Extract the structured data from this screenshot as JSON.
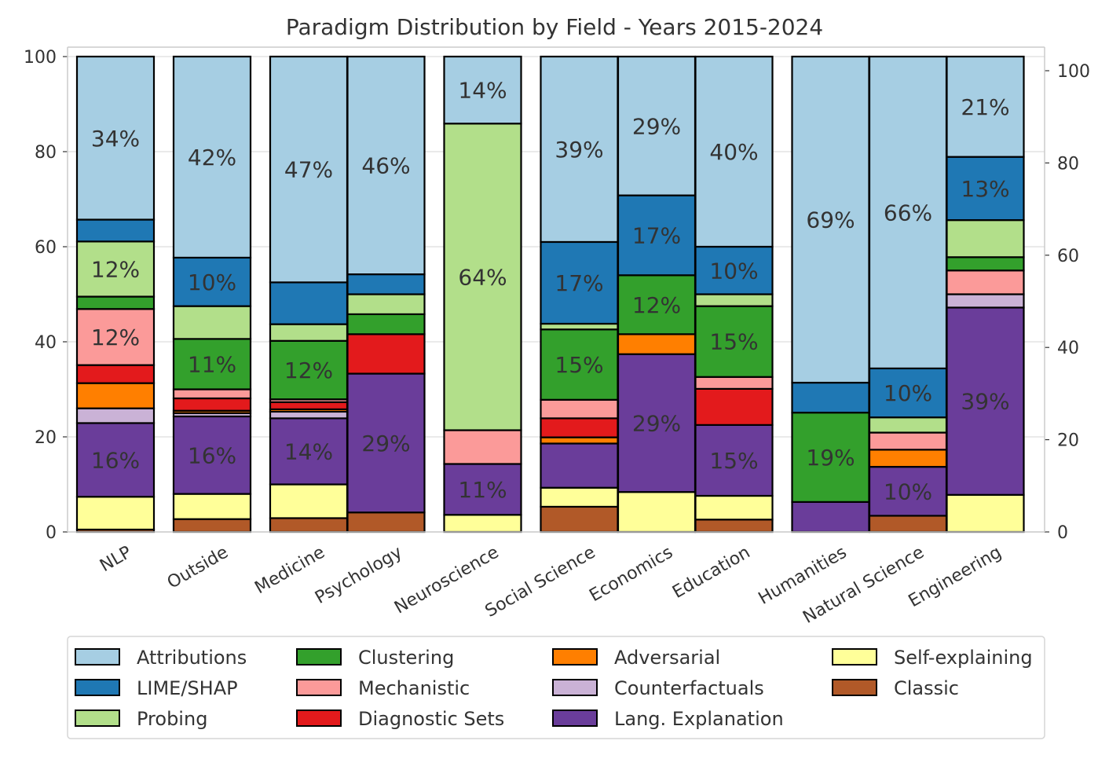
{
  "chart_data": {
    "type": "bar",
    "stacked": true,
    "title": "Paradigm Distribution by Field - Years 2015-2024",
    "xlabel": "",
    "ylabel": "",
    "ylim": [
      0,
      100
    ],
    "y_ticks": [
      0,
      20,
      40,
      60,
      80,
      100
    ],
    "y2_ticks": [
      0,
      20,
      40,
      60,
      80,
      100
    ],
    "grid": "horizontal",
    "legend_position": "bottom",
    "groups": [
      [
        "NLP"
      ],
      [
        "Outside"
      ],
      [
        "Medicine",
        "Psychology"
      ],
      [
        "Neuroscience"
      ],
      [
        "Social Science",
        "Economics",
        "Education"
      ],
      [
        "Humanities",
        "Natural Science",
        "Engineering"
      ]
    ],
    "categories": [
      "NLP",
      "Outside",
      "Medicine",
      "Psychology",
      "Neuroscience",
      "Social Science",
      "Economics",
      "Education",
      "Humanities",
      "Natural Science",
      "Engineering"
    ],
    "series": [
      {
        "name": "Classic",
        "color": "#b15928",
        "values": [
          0.5,
          2.7,
          2.9,
          4.1,
          0,
          5.3,
          0,
          2.6,
          0,
          3.4,
          0
        ]
      },
      {
        "name": "Self-explaining",
        "color": "#ffff99",
        "values": [
          6.9,
          5.3,
          7.1,
          0,
          3.6,
          4.0,
          8.4,
          5.0,
          0,
          0,
          7.8
        ]
      },
      {
        "name": "Lang. Explanation",
        "color": "#6a3d9a",
        "values": [
          15.5,
          16.3,
          13.9,
          29.2,
          10.7,
          9.3,
          29.0,
          14.9,
          6.3,
          10.3,
          39.4
        ]
      },
      {
        "name": "Counterfactuals",
        "color": "#cab2d6",
        "values": [
          3.1,
          0.7,
          1.4,
          0,
          0,
          0,
          0,
          0,
          0,
          0,
          2.8
        ]
      },
      {
        "name": "Adversarial",
        "color": "#ff7f00",
        "values": [
          5.3,
          0.5,
          0.5,
          0,
          0,
          1.3,
          4.2,
          0,
          0,
          3.6,
          0
        ]
      },
      {
        "name": "Diagnostic Sets",
        "color": "#e31a1c",
        "values": [
          3.8,
          2.6,
          1.5,
          8.3,
          0,
          4.0,
          0,
          7.6,
          0,
          0,
          0
        ]
      },
      {
        "name": "Mechanistic",
        "color": "#fb9a99",
        "values": [
          11.8,
          1.9,
          0.6,
          0,
          7.1,
          3.9,
          0,
          2.5,
          0,
          3.6,
          5.0
        ]
      },
      {
        "name": "Clustering",
        "color": "#33a02c",
        "values": [
          2.6,
          10.6,
          12.3,
          4.2,
          0,
          14.8,
          12.4,
          14.9,
          18.8,
          0,
          2.8
        ]
      },
      {
        "name": "Probing",
        "color": "#b2df8a",
        "values": [
          11.6,
          6.9,
          3.5,
          4.2,
          64.5,
          1.2,
          0,
          2.5,
          0,
          3.2,
          7.8
        ]
      },
      {
        "name": "LIME/SHAP",
        "color": "#1f78b4",
        "values": [
          4.6,
          10.2,
          8.8,
          4.2,
          0,
          17.2,
          16.8,
          10.0,
          6.3,
          10.3,
          13.3
        ]
      },
      {
        "name": "Attributions",
        "color": "#a6cee3",
        "values": [
          34.3,
          42.3,
          47.5,
          45.8,
          14.1,
          39.0,
          29.2,
          40.0,
          68.6,
          65.6,
          21.1
        ]
      }
    ],
    "data_labels": [
      {
        "category": "NLP",
        "series": "Attributions",
        "label": "34%"
      },
      {
        "category": "NLP",
        "series": "Probing",
        "label": "12%"
      },
      {
        "category": "NLP",
        "series": "Mechanistic",
        "label": "12%"
      },
      {
        "category": "NLP",
        "series": "Lang. Explanation",
        "label": "16%"
      },
      {
        "category": "Outside",
        "series": "Attributions",
        "label": "42%"
      },
      {
        "category": "Outside",
        "series": "LIME/SHAP",
        "label": "10%"
      },
      {
        "category": "Outside",
        "series": "Clustering",
        "label": "11%"
      },
      {
        "category": "Outside",
        "series": "Lang. Explanation",
        "label": "16%"
      },
      {
        "category": "Medicine",
        "series": "Attributions",
        "label": "47%"
      },
      {
        "category": "Medicine",
        "series": "Clustering",
        "label": "12%"
      },
      {
        "category": "Medicine",
        "series": "Lang. Explanation",
        "label": "14%"
      },
      {
        "category": "Psychology",
        "series": "Attributions",
        "label": "46%"
      },
      {
        "category": "Psychology",
        "series": "Lang. Explanation",
        "label": "29%"
      },
      {
        "category": "Neuroscience",
        "series": "Attributions",
        "label": "14%"
      },
      {
        "category": "Neuroscience",
        "series": "Probing",
        "label": "64%"
      },
      {
        "category": "Neuroscience",
        "series": "Lang. Explanation",
        "label": "11%"
      },
      {
        "category": "Social Science",
        "series": "Attributions",
        "label": "39%"
      },
      {
        "category": "Social Science",
        "series": "LIME/SHAP",
        "label": "17%"
      },
      {
        "category": "Social Science",
        "series": "Clustering",
        "label": "15%"
      },
      {
        "category": "Economics",
        "series": "Attributions",
        "label": "29%"
      },
      {
        "category": "Economics",
        "series": "LIME/SHAP",
        "label": "17%"
      },
      {
        "category": "Economics",
        "series": "Clustering",
        "label": "12%"
      },
      {
        "category": "Economics",
        "series": "Lang. Explanation",
        "label": "29%"
      },
      {
        "category": "Education",
        "series": "Attributions",
        "label": "40%"
      },
      {
        "category": "Education",
        "series": "LIME/SHAP",
        "label": "10%"
      },
      {
        "category": "Education",
        "series": "Clustering",
        "label": "15%"
      },
      {
        "category": "Education",
        "series": "Lang. Explanation",
        "label": "15%"
      },
      {
        "category": "Humanities",
        "series": "Attributions",
        "label": "69%"
      },
      {
        "category": "Humanities",
        "series": "Clustering",
        "label": "19%"
      },
      {
        "category": "Natural Science",
        "series": "Attributions",
        "label": "66%"
      },
      {
        "category": "Natural Science",
        "series": "LIME/SHAP",
        "label": "10%"
      },
      {
        "category": "Natural Science",
        "series": "Lang. Explanation",
        "label": "10%"
      },
      {
        "category": "Engineering",
        "series": "Attributions",
        "label": "21%"
      },
      {
        "category": "Engineering",
        "series": "LIME/SHAP",
        "label": "13%"
      },
      {
        "category": "Engineering",
        "series": "Lang. Explanation",
        "label": "39%"
      }
    ],
    "legend": [
      "Attributions",
      "LIME/SHAP",
      "Probing",
      "Clustering",
      "Mechanistic",
      "Diagnostic Sets",
      "Adversarial",
      "Counterfactuals",
      "Lang. Explanation",
      "Self-explaining",
      "Classic"
    ]
  }
}
